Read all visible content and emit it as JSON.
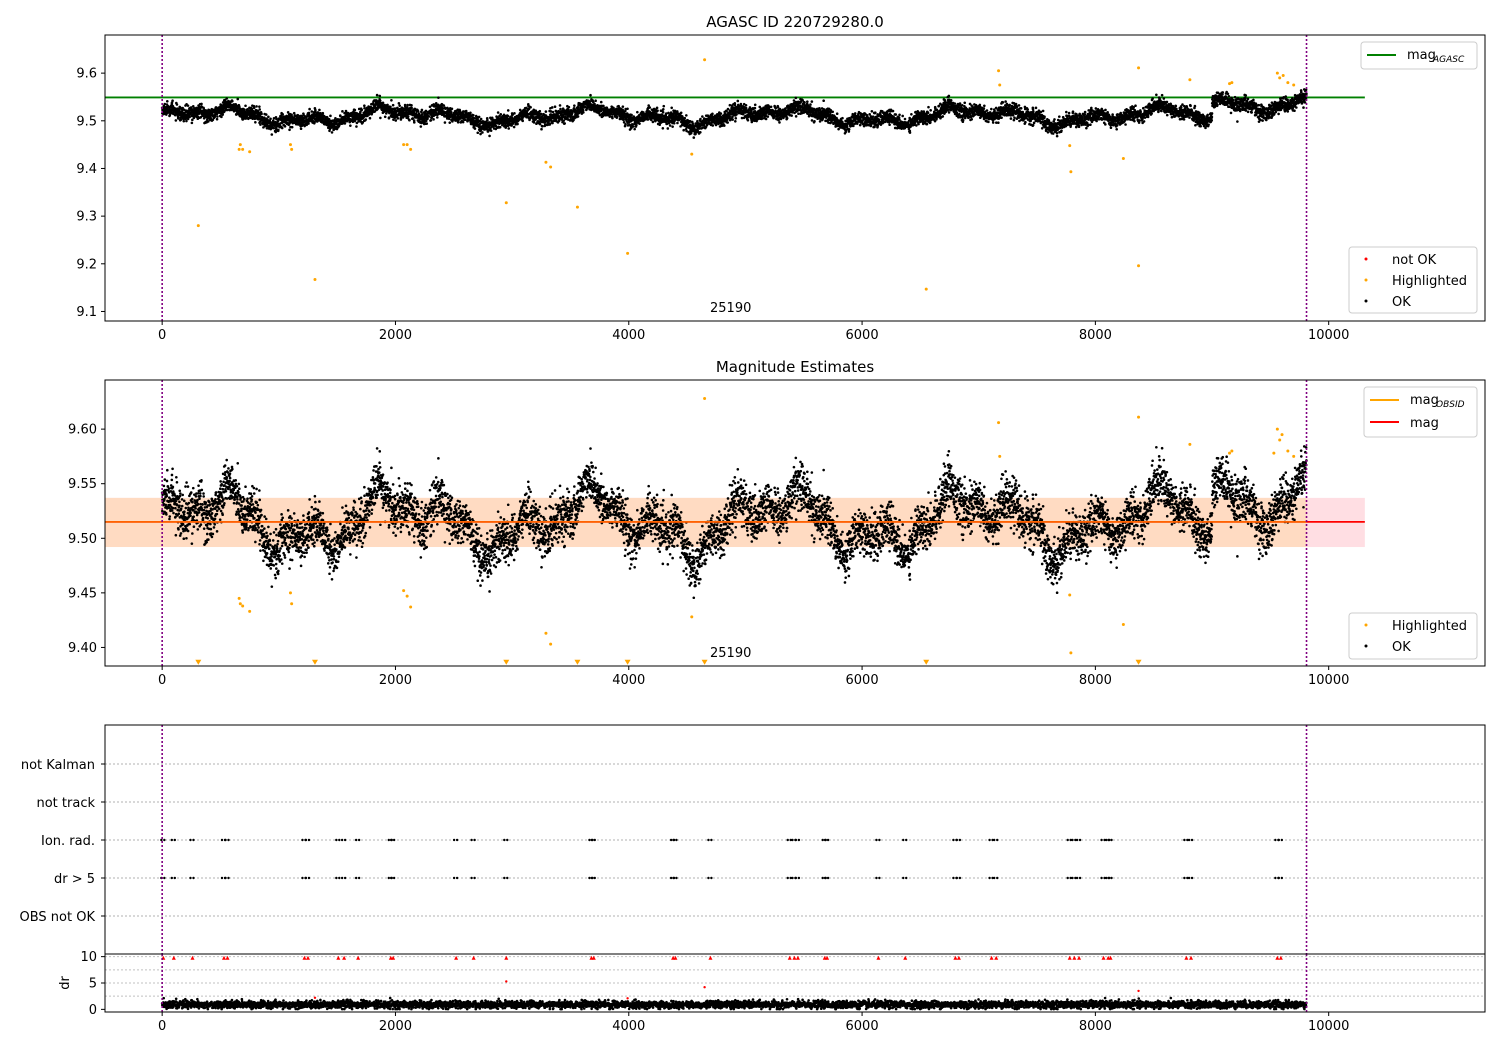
{
  "chart_data": [
    {
      "type": "scatter",
      "title": "AGASC ID 220729280.0",
      "xlim": [
        -490,
        11340
      ],
      "ylim": [
        9.08,
        9.68
      ],
      "xticks": [
        0,
        2000,
        4000,
        6000,
        8000,
        10000
      ],
      "yticks": [
        9.1,
        9.2,
        9.3,
        9.4,
        9.5,
        9.6
      ],
      "vlines": [
        0,
        9810
      ],
      "hline": {
        "value": 9.549,
        "x_range": [
          0,
          10310
        ],
        "color": "#008000",
        "label_html": "mag<sub>AGASC</sub>"
      },
      "annotation": {
        "text": "25190",
        "x": 4650,
        "y": 9.11
      },
      "legends": [
        {
          "position": "top-right",
          "items": [
            {
              "label": "mag",
              "sub": "AGASC",
              "color": "#008000",
              "kind": "line"
            }
          ]
        },
        {
          "position": "bottom-right",
          "items": [
            {
              "label": "not OK",
              "color": "#ff0000",
              "kind": "dot"
            },
            {
              "label": "Highlighted",
              "color": "#ffa500",
              "kind": "dot"
            },
            {
              "label": "OK",
              "color": "#000000",
              "kind": "dot"
            }
          ]
        }
      ],
      "series": [
        {
          "name": "OK",
          "color": "#000000",
          "baseline": 9.51,
          "x_range": [
            0,
            9810
          ],
          "noise": 0.012,
          "points_per_unit": 0.75
        },
        {
          "name": "Highlighted",
          "color": "#ffa500",
          "x": [
            310,
            660,
            670,
            690,
            750,
            1100,
            1110,
            1310,
            2070,
            2100,
            2130,
            2950,
            3290,
            3330,
            3560,
            3990,
            4540,
            4650,
            6550,
            7170,
            7180,
            7780,
            7790,
            8240,
            8370,
            8370,
            8810,
            9150,
            9170,
            9560,
            9580,
            9610,
            9650,
            9700
          ],
          "y": [
            9.28,
            9.44,
            9.45,
            9.44,
            9.435,
            9.45,
            9.44,
            9.167,
            9.45,
            9.45,
            9.44,
            9.328,
            9.413,
            9.403,
            9.319,
            9.222,
            9.43,
            9.628,
            9.147,
            9.605,
            9.575,
            9.448,
            9.393,
            9.421,
            9.611,
            9.196,
            9.586,
            9.578,
            9.58,
            9.6,
            9.59,
            9.595,
            9.58,
            9.575
          ]
        }
      ]
    },
    {
      "type": "scatter",
      "title": "Magnitude Estimates",
      "xlim": [
        -490,
        11340
      ],
      "ylim": [
        9.383,
        9.645
      ],
      "xticks": [
        0,
        2000,
        4000,
        6000,
        8000,
        10000
      ],
      "yticks": [
        9.4,
        9.45,
        9.5,
        9.55,
        9.6
      ],
      "ytick_labels": [
        "9.40",
        "9.45",
        "9.50",
        "9.55",
        "9.60"
      ],
      "vlines": [
        0,
        9810
      ],
      "mag_line": {
        "value": 9.515,
        "x_range": [
          -490,
          10310
        ],
        "color": "#ff0000"
      },
      "mag_band": {
        "low": 9.492,
        "high": 9.537,
        "x_range": [
          -490,
          10310
        ],
        "color": "#ffb6c1"
      },
      "obsid_band": {
        "low": 9.492,
        "high": 9.537,
        "x_range": [
          -490,
          9810
        ],
        "color": "#ffdab9"
      },
      "obsid_line": {
        "value": 9.515,
        "x_range": [
          -490,
          9810
        ],
        "color": "#ffa500"
      },
      "annotation": {
        "text": "25190",
        "x": 4650,
        "y": 9.39
      },
      "limit_markers": {
        "color": "#ffa500",
        "x": [
          310,
          1310,
          2950,
          3560,
          3990,
          4650,
          6550,
          8370
        ],
        "y": 9.386
      },
      "legends": [
        {
          "position": "top-right",
          "items": [
            {
              "label": "mag",
              "sub": "OBSID",
              "color": "#ffa500",
              "kind": "line"
            },
            {
              "label": "mag",
              "color": "#ff0000",
              "kind": "line"
            }
          ]
        },
        {
          "position": "bottom-right",
          "items": [
            {
              "label": "Highlighted",
              "color": "#ffa500",
              "kind": "dot"
            },
            {
              "label": "OK",
              "color": "#000000",
              "kind": "dot"
            }
          ]
        }
      ],
      "series": [
        {
          "name": "OK",
          "color": "#000000",
          "baseline": 9.515,
          "x_range": [
            0,
            9810
          ],
          "noise": 0.015,
          "points_per_unit": 0.75
        },
        {
          "name": "Highlighted",
          "color": "#ffa500",
          "x": [
            660,
            670,
            690,
            750,
            1100,
            1110,
            2070,
            2100,
            2130,
            3290,
            3330,
            4540,
            4650,
            7170,
            7180,
            7780,
            7790,
            8240,
            8370,
            8810,
            9150,
            9170,
            9530,
            9560,
            9580,
            9600,
            9650,
            9700
          ],
          "y": [
            9.445,
            9.44,
            9.438,
            9.433,
            9.45,
            9.44,
            9.452,
            9.447,
            9.437,
            9.413,
            9.403,
            9.428,
            9.628,
            9.606,
            9.575,
            9.448,
            9.395,
            9.421,
            9.611,
            9.586,
            9.578,
            9.58,
            9.578,
            9.6,
            9.59,
            9.595,
            9.58,
            9.575
          ]
        }
      ]
    },
    {
      "type": "scatter",
      "title": "",
      "xlim": [
        -490,
        11340
      ],
      "categories": [
        "not Kalman",
        "not track",
        "Ion. rad.",
        "dr > 5",
        "OBS not OK"
      ],
      "vlines": [
        0,
        9810
      ],
      "flags": {
        "Ion. rad.": [
          10,
          100,
          260,
          530,
          560,
          1220,
          1250,
          1510,
          1560,
          1680,
          1960,
          1980,
          2520,
          2670,
          2950,
          3680,
          3700,
          4380,
          4400,
          4700,
          5380,
          5420,
          5450,
          5680,
          5700,
          6140,
          6370,
          6800,
          6830,
          7110,
          7150,
          7780,
          7820,
          7860,
          8070,
          8110,
          8130,
          8780,
          8820,
          9560,
          9590
        ],
        "dr > 5": [
          10,
          100,
          260,
          530,
          560,
          1220,
          1250,
          1510,
          1560,
          1680,
          1960,
          1980,
          2520,
          2670,
          2950,
          3680,
          3700,
          4380,
          4400,
          4700,
          5380,
          5420,
          5450,
          5680,
          5700,
          6140,
          6370,
          6800,
          6830,
          7110,
          7150,
          7780,
          7820,
          7860,
          8070,
          8110,
          8130,
          8780,
          8820,
          9560,
          9590
        ]
      }
    },
    {
      "type": "scatter",
      "title": "",
      "ylabel": "dr",
      "xlim": [
        -490,
        11340
      ],
      "ylim": [
        -0.5,
        10.5
      ],
      "xticks": [
        0,
        2000,
        4000,
        6000,
        8000,
        10000
      ],
      "yticks": [
        0,
        5,
        10
      ],
      "vlines": [
        0,
        9810
      ],
      "series": [
        {
          "name": "OK",
          "color": "#000000",
          "baseline": 0.9,
          "x_range": [
            0,
            9810
          ],
          "noise": 0.35,
          "points_per_unit": 0.6
        },
        {
          "name": "clipped",
          "color": "#ff0000",
          "y": 9.8,
          "x": [
            10,
            100,
            260,
            530,
            560,
            1220,
            1250,
            1510,
            1560,
            1680,
            1960,
            1980,
            2520,
            2670,
            2950,
            3680,
            3700,
            4380,
            4400,
            4700,
            5380,
            5420,
            5450,
            5680,
            5700,
            6140,
            6370,
            6800,
            6830,
            7110,
            7150,
            7780,
            7820,
            7860,
            8070,
            8110,
            8130,
            8780,
            8820,
            9560,
            9590
          ]
        },
        {
          "name": "outliers",
          "color": "#ff0000",
          "x": [
            2950,
            4650,
            8370,
            1310,
            3990
          ],
          "y": [
            5.3,
            4.2,
            3.5,
            2.2,
            2.1
          ]
        }
      ]
    }
  ]
}
